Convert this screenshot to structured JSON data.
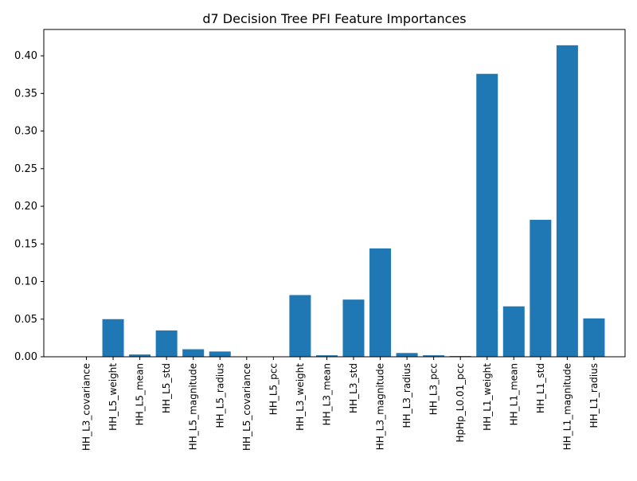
{
  "chart_data": {
    "type": "bar",
    "title": "d7 Decision Tree PFI Feature Importances",
    "xlabel": "",
    "ylabel": "",
    "ylim": [
      0,
      0.435
    ],
    "yticks": [
      0.0,
      0.05,
      0.1,
      0.15,
      0.2,
      0.25,
      0.3,
      0.35,
      0.4
    ],
    "ytick_labels": [
      "0.00",
      "0.05",
      "0.10",
      "0.15",
      "0.20",
      "0.25",
      "0.30",
      "0.35",
      "0.40"
    ],
    "grid": false,
    "bar_color": "#1f77b4",
    "categories": [
      "HH_L3_covariance",
      "HH_L5_weight",
      "HH_L5_mean",
      "HH_L5_std",
      "HH_L5_magnitude",
      "HH_L5_radius",
      "HH_L5_covariance",
      "HH_L5_pcc",
      "HH_L3_weight",
      "HH_L3_mean",
      "HH_L3_std",
      "HH_L3_magnitude",
      "HH_L3_radius",
      "HH_L3_pcc",
      "HpHp_L0.01_pcc",
      "HH_L1_weight",
      "HH_L1_mean",
      "HH_L1_std",
      "HH_L1_magnitude",
      "HH_L1_radius"
    ],
    "values": [
      0.0,
      0.05,
      0.003,
      0.035,
      0.01,
      0.007,
      0.0,
      0.0,
      0.082,
      0.002,
      0.076,
      0.144,
      0.005,
      0.002,
      0.001,
      0.376,
      0.067,
      0.182,
      0.414,
      0.051
    ]
  }
}
